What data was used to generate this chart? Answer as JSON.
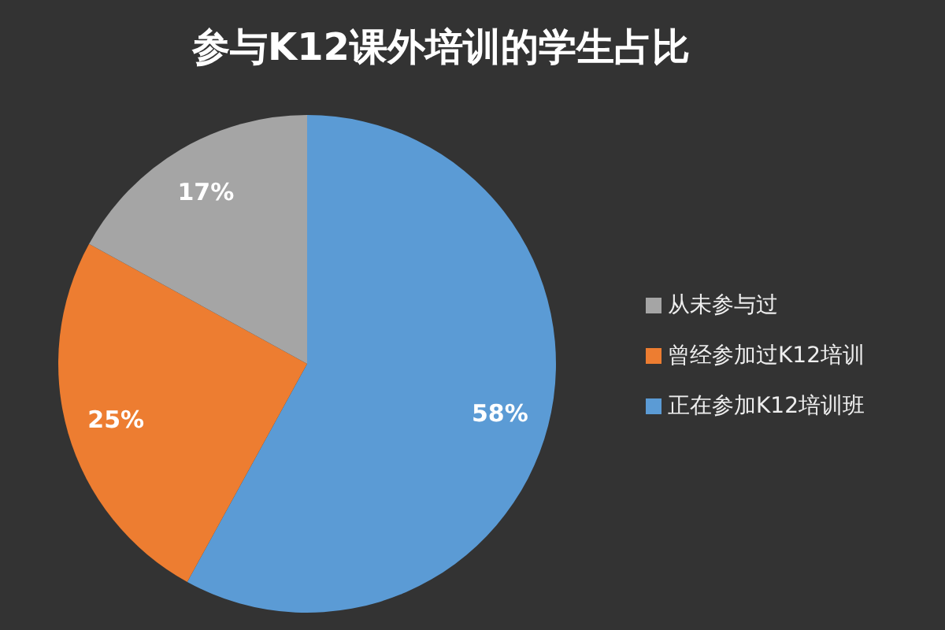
{
  "chart_data": {
    "type": "pie",
    "title": "参与K12课外培训的学生占比",
    "categories": [
      "正在参加K12培训班",
      "曾经参加过K12培训",
      "从未参与过"
    ],
    "values": [
      58,
      25,
      17
    ],
    "colors": [
      "#5b9bd5",
      "#ed7d31",
      "#a5a5a5"
    ],
    "value_labels": [
      "58%",
      "25%",
      "17%"
    ],
    "legend": "right"
  }
}
